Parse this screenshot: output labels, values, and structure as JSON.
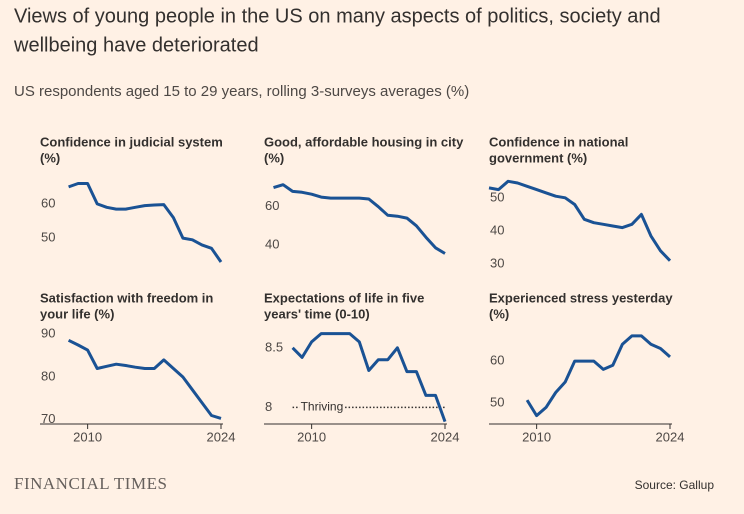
{
  "title": [
    "Views of young people in the US on many aspects of politics, society and",
    "wellbeing have deteriorated"
  ],
  "subtitle": "US respondents aged 15 to 29 years, rolling 3-surveys averages (%)",
  "source": "Source: Gallup",
  "logo": "FINANCIAL TIMES",
  "chart_data": [
    {
      "type": "line",
      "title": [
        "Confidence in judicial system",
        "(%)"
      ],
      "color": "#1a5294",
      "x": [
        2008,
        2009,
        2010,
        2011,
        2012,
        2013,
        2014,
        2015,
        2016,
        2017,
        2018,
        2019,
        2020,
        2021,
        2022,
        2023,
        2024
      ],
      "values": [
        65,
        66,
        66,
        60,
        59,
        58.5,
        58.5,
        59,
        59.5,
        59.7,
        59.8,
        56,
        50,
        49.5,
        48,
        47,
        43
      ],
      "xlim": [
        2005,
        2024
      ],
      "ylim": [
        42.4,
        67.6
      ],
      "yticks": [
        50,
        60
      ]
    },
    {
      "type": "line",
      "title": [
        "Good, affordable housing in city",
        "(%)"
      ],
      "color": "#1a5294",
      "x": [
        2006,
        2007,
        2008,
        2009,
        2010,
        2011,
        2012,
        2013,
        2014,
        2015,
        2016,
        2017,
        2018,
        2019,
        2020,
        2021,
        2022,
        2023,
        2024
      ],
      "values": [
        70,
        71.5,
        68,
        67.5,
        66.5,
        65,
        64.5,
        64.5,
        64.5,
        64.5,
        64,
        60,
        55.5,
        55,
        54,
        50,
        44,
        38.5,
        35.5
      ],
      "xlim": [
        2005,
        2024
      ],
      "ylim": [
        30,
        75
      ],
      "yticks": [
        40,
        60
      ]
    },
    {
      "type": "line",
      "title": [
        "Confidence in national",
        "government (%)"
      ],
      "color": "#1a5294",
      "x": [
        2005,
        2006,
        2007,
        2008,
        2009,
        2010,
        2011,
        2012,
        2013,
        2014,
        2015,
        2016,
        2017,
        2018,
        2019,
        2020,
        2021,
        2022,
        2023,
        2024
      ],
      "values": [
        53,
        52.5,
        55,
        54.5,
        53.5,
        52.5,
        51.5,
        50.5,
        50,
        48,
        43.5,
        42.5,
        42,
        41.5,
        41,
        42,
        45,
        38.5,
        34,
        31
      ],
      "xlim": [
        2005,
        2024
      ],
      "ylim": [
        30,
        56
      ],
      "yticks": [
        30,
        40,
        50
      ]
    },
    {
      "type": "line",
      "title": [
        "Satisfaction with freedom in",
        "your life (%)"
      ],
      "color": "#1a5294",
      "x": [
        2008,
        2009,
        2010,
        2011,
        2012,
        2013,
        2014,
        2015,
        2016,
        2017,
        2018,
        2019,
        2020,
        2021,
        2022,
        2023,
        2024
      ],
      "values": [
        88.6,
        87.5,
        86.3,
        82,
        82.5,
        83,
        82.7,
        82.3,
        82,
        82,
        84,
        82,
        80,
        77,
        74,
        71,
        70.3
      ],
      "xlim": [
        2005,
        2024
      ],
      "ylim": [
        69,
        91
      ],
      "yticks": [
        70,
        80,
        90
      ],
      "xticks": [
        2010,
        2024
      ]
    },
    {
      "type": "line",
      "title": [
        "Expectations of life in five",
        "years' time (0-10)"
      ],
      "color": "#1a5294",
      "x": [
        2008,
        2009,
        2010,
        2011,
        2012,
        2013,
        2014,
        2015,
        2016,
        2017,
        2018,
        2019,
        2020,
        2021,
        2022,
        2023,
        2024
      ],
      "values": [
        8.5,
        8.42,
        8.55,
        8.62,
        8.62,
        8.62,
        8.62,
        8.55,
        8.31,
        8.4,
        8.4,
        8.5,
        8.3,
        8.3,
        8.1,
        8.1,
        7.88
      ],
      "xlim": [
        2005,
        2024
      ],
      "ylim": [
        7.86,
        8.65
      ],
      "yticks": [
        8,
        8.5
      ],
      "xticks": [
        2010,
        2024
      ],
      "annotation": {
        "text": "Thriving",
        "value": 8
      }
    },
    {
      "type": "line",
      "title": [
        "Experienced stress yesterday",
        "(%)"
      ],
      "color": "#1a5294",
      "x": [
        2009,
        2010,
        2011,
        2012,
        2013,
        2014,
        2015,
        2016,
        2017,
        2018,
        2019,
        2020,
        2021,
        2022,
        2023,
        2024
      ],
      "values": [
        50.7,
        47,
        49,
        52.5,
        55,
        60,
        60,
        60,
        58,
        59,
        64,
        66,
        66,
        64,
        63,
        61
      ],
      "xlim": [
        2005,
        2024
      ],
      "ylim": [
        45,
        67.4
      ],
      "yticks": [
        50,
        60
      ],
      "xticks": [
        2010,
        2024
      ]
    }
  ]
}
